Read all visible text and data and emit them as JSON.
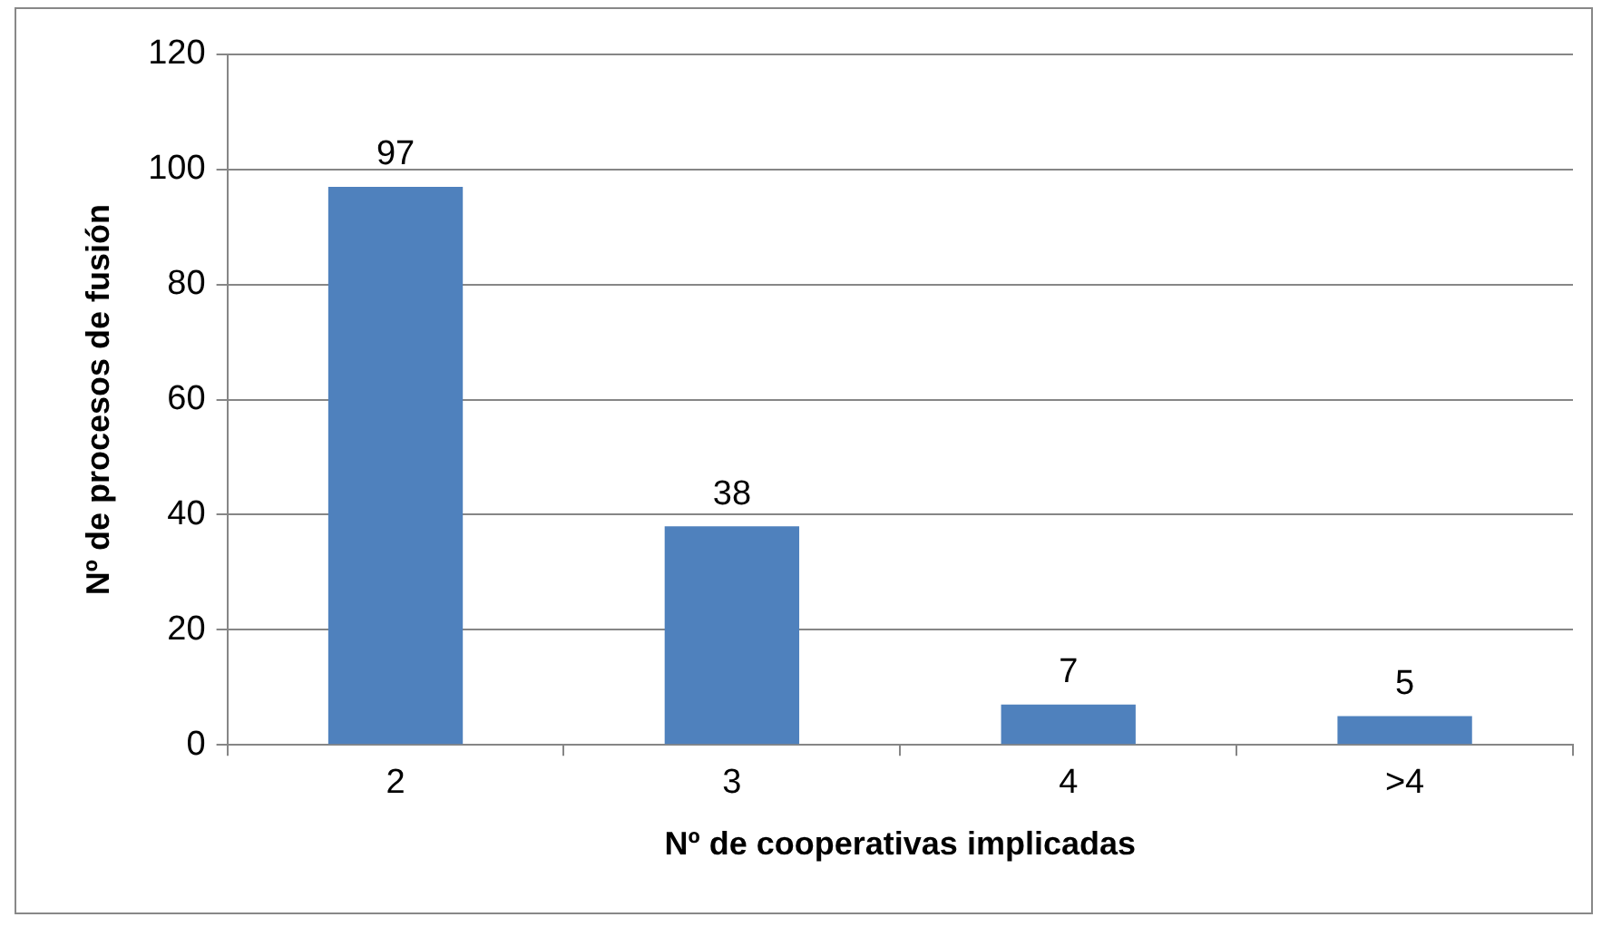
{
  "chart_data": {
    "type": "bar",
    "xlabel": "Nº de cooperativas implicadas",
    "ylabel": "Nº de procesos de fusión",
    "categories": [
      "2",
      "3",
      "4",
      ">4"
    ],
    "values": [
      97,
      38,
      7,
      5
    ],
    "color": "#4f81bd",
    "ylim": [
      0,
      120
    ],
    "yticks": [
      0,
      20,
      40,
      60,
      80,
      100,
      120
    ],
    "grid": "y",
    "data_labels": true,
    "legend": false
  }
}
